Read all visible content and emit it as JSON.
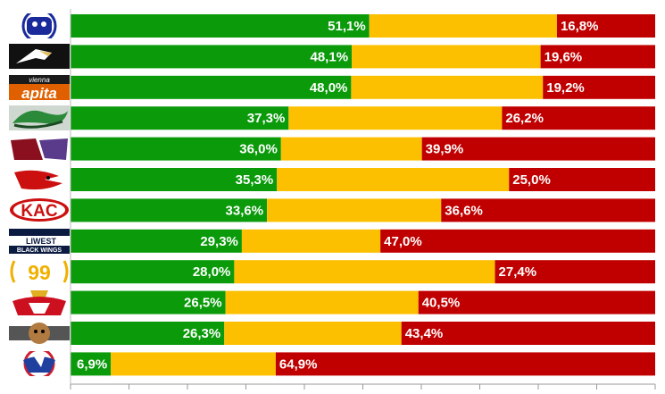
{
  "chart_data": {
    "type": "bar",
    "orientation": "horizontal",
    "stacked": true,
    "title": "",
    "xlabel": "",
    "ylabel": "",
    "xlim": [
      0,
      100
    ],
    "grid": false,
    "legend": "none",
    "categories": [
      "team-1",
      "team-2",
      "team-3",
      "team-4",
      "team-5",
      "team-6",
      "team-7",
      "team-8",
      "team-9",
      "team-10",
      "team-11",
      "team-12"
    ],
    "series": [
      {
        "color": "#0a9a0a",
        "values": [
          51.1,
          48.1,
          48.0,
          37.3,
          36.0,
          35.3,
          33.6,
          29.3,
          28.0,
          26.5,
          26.3,
          6.9
        ],
        "labels": [
          "51,1%",
          "48,1%",
          "48,0%",
          "37,3%",
          "36,0%",
          "35,3%",
          "33,6%",
          "29,3%",
          "28,0%",
          "26,5%",
          "26,3%",
          "6,9%"
        ]
      },
      {
        "color": "#fcc000",
        "values": [
          32.1,
          32.3,
          32.8,
          36.5,
          24.1,
          39.7,
          29.8,
          23.7,
          44.6,
          33.0,
          30.3,
          28.2
        ],
        "labels": [
          "",
          "",
          "",
          "",
          "",
          "",
          "",
          "",
          "",
          "",
          "",
          ""
        ]
      },
      {
        "color": "#c00000",
        "values": [
          16.8,
          19.6,
          19.2,
          26.2,
          39.9,
          25.0,
          36.6,
          47.0,
          27.4,
          40.5,
          43.4,
          64.9
        ],
        "labels": [
          "16,8%",
          "19,6%",
          "19,2%",
          "26,2%",
          "39,9%",
          "25,0%",
          "36,6%",
          "47,0%",
          "27,4%",
          "40,5%",
          "43,4%",
          "64,9%"
        ]
      }
    ],
    "logos": [
      {
        "icon": "blue-crest-logo-icon",
        "color": "#1a2a9a"
      },
      {
        "icon": "black-eagle-logo-icon",
        "color": "#111111"
      },
      {
        "icon": "vienna-capitals-logo-icon",
        "color": "#e06000",
        "text": "vienna",
        "text2": "apita"
      },
      {
        "icon": "green-snake-logo-icon",
        "color": "#2a8a3a"
      },
      {
        "icon": "red-purple-logo-icon",
        "color": "#8a1020"
      },
      {
        "icon": "red-eagle-logo-icon",
        "color": "#cc1010"
      },
      {
        "icon": "kac-logo-icon",
        "color": "#cc1010",
        "text": "KAC"
      },
      {
        "icon": "black-wings-logo-icon",
        "color": "#0a1a40",
        "text": "LIWEST",
        "text2": "BLACK WINGS"
      },
      {
        "icon": "99ers-logo-icon",
        "color": "#f0b000",
        "text": "99"
      },
      {
        "icon": "red-bull-logo-icon",
        "color": "#cc1020"
      },
      {
        "icon": "bulldog-logo-icon",
        "color": "#555555"
      },
      {
        "icon": "blue-red-crest-logo-icon",
        "color": "#2040a0"
      }
    ]
  }
}
